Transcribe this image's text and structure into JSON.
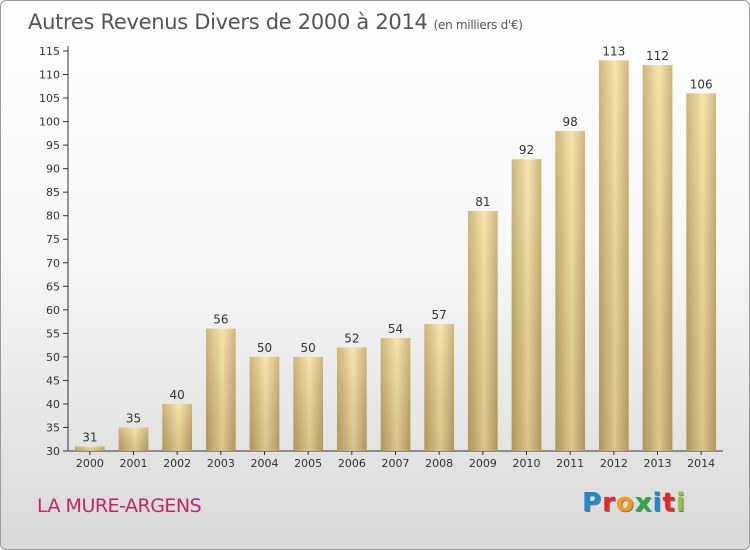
{
  "title": "Autres Revenus Divers de 2000 à 2014",
  "title_unit": "(en milliers d'€)",
  "place": "LA MURE-ARGENS",
  "logo_text": "Proxiti",
  "logo_colors": [
    "#1f8ac9",
    "#e8262b",
    "#f39a1d",
    "#2ea84a",
    "#1f8ac9",
    "#e8262b",
    "#8cc63f"
  ],
  "colors": {
    "bar_light": "#f6dfa0",
    "bar_dark": "#c7a966",
    "axis": "#333333",
    "label": "#333333",
    "title": "#555555",
    "place": "#c3236d"
  },
  "chart_data": {
    "type": "bar",
    "title": "Autres Revenus Divers de 2000 à 2014",
    "xlabel": "",
    "ylabel": "",
    "categories": [
      "2000",
      "2001",
      "2002",
      "2003",
      "2004",
      "2005",
      "2006",
      "2007",
      "2008",
      "2009",
      "2010",
      "2011",
      "2012",
      "2013",
      "2014"
    ],
    "values": [
      31,
      35,
      40,
      56,
      50,
      50,
      52,
      54,
      57,
      81,
      92,
      98,
      113,
      112,
      106
    ],
    "ylim": [
      30,
      115
    ],
    "yticks": [
      30,
      35,
      40,
      45,
      50,
      55,
      60,
      65,
      70,
      75,
      80,
      85,
      90,
      95,
      100,
      105,
      110,
      115
    ],
    "grid": false,
    "legend": "none"
  }
}
